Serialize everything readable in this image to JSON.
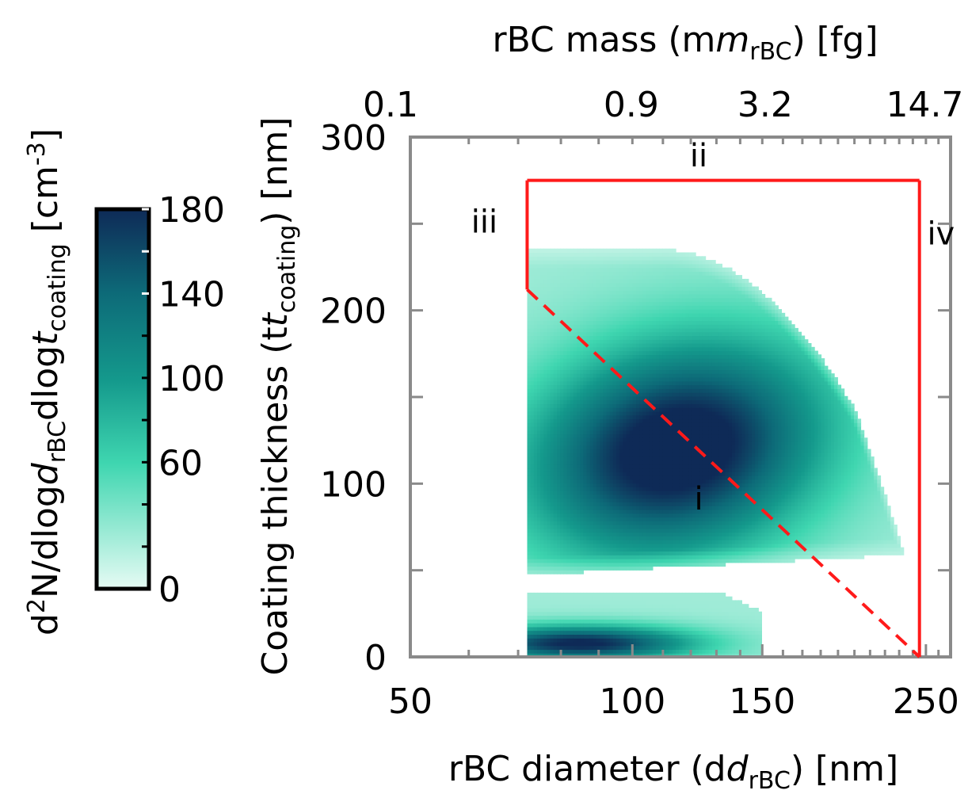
{
  "chart_data": {
    "type": "heatmap",
    "x_axis": {
      "label": "rBC diameter (d",
      "label_sub": "rBC",
      "label_tail": ") [nm]",
      "scale": "log",
      "range": [
        50,
        270
      ],
      "ticks": [
        50,
        100,
        150,
        250
      ],
      "tick_labels": [
        "50",
        "100",
        "150",
        "250"
      ]
    },
    "top_axis": {
      "label": "rBC mass (m",
      "label_sub": "rBC",
      "label_tail": ") [fg]",
      "ticks_at_diameter": [
        50,
        106,
        161,
        265
      ],
      "tick_labels": [
        "0.1",
        "0.9",
        "3.2",
        "14.7"
      ]
    },
    "y_axis": {
      "label": "Coating thickness (t",
      "label_sub": "coating",
      "label_tail": ") [nm]",
      "range": [
        0,
        300
      ],
      "ticks": [
        0,
        50,
        100,
        150,
        200,
        250,
        300
      ],
      "tick_labels": [
        "0",
        "",
        "100",
        "",
        "200",
        "",
        "300"
      ]
    },
    "colorbar": {
      "label_parts": [
        "d",
        "2",
        "N/dlog",
        "d",
        "rBC",
        "dlog",
        "t",
        "coating",
        "[cm",
        "-3",
        "]"
      ],
      "range": [
        0,
        180
      ],
      "ticks": [
        0,
        60,
        100,
        140,
        180
      ],
      "tick_labels": [
        "0",
        "60",
        "100",
        "140",
        "180"
      ],
      "colors": [
        "#e6fbf4",
        "#3fd6b0",
        "#14998c",
        "#0d6a78",
        "#0e2a57"
      ]
    },
    "heatmap": {
      "description_free": true,
      "main_mode": {
        "x_center": 115,
        "y_center": 120,
        "peak": 180
      },
      "coating_range_main": [
        50,
        235
      ],
      "thin_coating_band": {
        "x_range": [
          72,
          150
        ],
        "y_range": [
          0,
          38
        ],
        "peak": 160
      }
    },
    "boundaries": {
      "upper_limit_y": 275,
      "lower_d_limit": 72,
      "upper_d_limit": 245,
      "lower_d_line_y_range": [
        212,
        275
      ],
      "dashed_line": [
        [
          72,
          212
        ],
        [
          245,
          0
        ]
      ],
      "color": "#ff1a1a"
    },
    "annotations": [
      {
        "text": "i",
        "x": 123,
        "y": 85
      },
      {
        "text": "ii",
        "x": 123,
        "y": 283
      },
      {
        "text": "iii",
        "x": 63,
        "y": 245
      },
      {
        "text": "iv",
        "x": 262,
        "y": 238
      }
    ]
  }
}
